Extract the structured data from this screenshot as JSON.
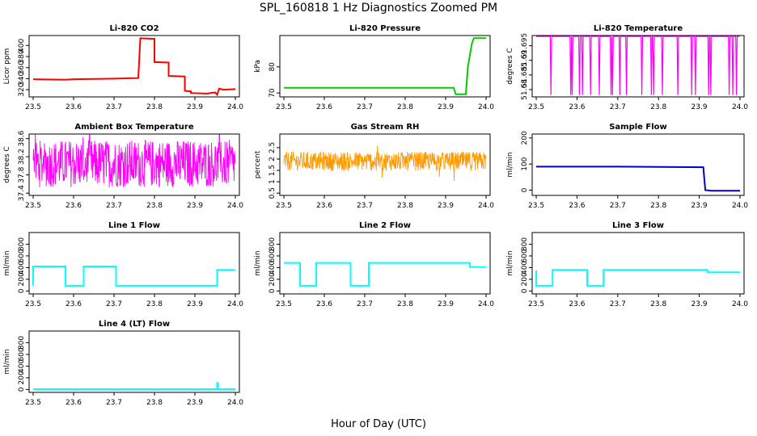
{
  "title": "SPL_160818  1 Hz Diagnostics Zoomed PM",
  "xlabel": "Hour of Day (UTC)",
  "chart_data": [
    {
      "id": "co2",
      "type": "line",
      "title": "Li-820 CO2",
      "ylabel": "Licor ppm",
      "color": "#ff0000",
      "xticks": [
        "23.5",
        "23.6",
        "23.7",
        "23.8",
        "23.9",
        "24.0"
      ],
      "yticks": [
        320,
        340,
        360,
        380,
        400
      ],
      "ylim": [
        307,
        418
      ],
      "xlim": [
        23.49,
        24.01
      ],
      "x": [
        23.5,
        23.58,
        23.6,
        23.7,
        23.76,
        23.765,
        23.8,
        23.8,
        23.835,
        23.835,
        23.875,
        23.875,
        23.89,
        23.89,
        23.93,
        23.95,
        23.955,
        23.96,
        23.97,
        24.0
      ],
      "y": [
        339,
        338,
        339,
        340,
        341,
        413,
        412,
        370,
        369,
        345,
        344,
        318,
        317,
        314,
        313,
        315,
        311,
        322,
        320,
        321
      ]
    },
    {
      "id": "pressure",
      "type": "line",
      "title": "Li-820 Pressure",
      "ylabel": "kPa",
      "color": "#00cc00",
      "xticks": [
        "23.5",
        "23.6",
        "23.7",
        "23.8",
        "23.9",
        "24.0"
      ],
      "yticks": [
        70,
        80
      ],
      "ylim": [
        68.5,
        92
      ],
      "xlim": [
        23.49,
        24.01
      ],
      "x": [
        23.5,
        23.7,
        23.9,
        23.92,
        23.925,
        23.95,
        23.955,
        23.965,
        23.97,
        24.0
      ],
      "y": [
        72,
        72,
        72,
        72,
        69.5,
        69.5,
        80,
        89,
        91,
        91
      ]
    },
    {
      "id": "licor_temp",
      "type": "line",
      "title": "Li-820 Temperature",
      "ylabel": "degrees C",
      "color": "#ff00ff",
      "xticks": [
        "23.5",
        "23.6",
        "23.7",
        "23.8",
        "23.9",
        "24.0"
      ],
      "yticks": [
        51.68,
        51.685,
        51.69,
        51.695
      ],
      "ylim": [
        51.6775,
        51.6985
      ],
      "xlim": [
        23.49,
        24.01
      ],
      "noise": "binary",
      "low": 51.6781,
      "high": 51.6982
    },
    {
      "id": "ambient_temp",
      "type": "line",
      "title": "Ambient Box Temperature",
      "ylabel": "degrees C",
      "color": "#ff00ff",
      "xticks": [
        "23.5",
        "23.6",
        "23.7",
        "23.8",
        "23.9",
        "24.0"
      ],
      "yticks": [
        37.4,
        37.8,
        38.2,
        38.6
      ],
      "ylim": [
        37.35,
        38.7
      ],
      "xlim": [
        23.49,
        24.01
      ],
      "noise": "band",
      "low": 37.55,
      "high": 38.55,
      "center": 38.05
    },
    {
      "id": "rh",
      "type": "scatter",
      "title": "Gas Stream RH",
      "ylabel": "percent",
      "color": "#ff9900",
      "xticks": [
        "23.5",
        "23.6",
        "23.7",
        "23.8",
        "23.9",
        "24.0"
      ],
      "yticks": [
        0.5,
        1.0,
        1.5,
        2.0,
        2.5
      ],
      "ylim": [
        0.4,
        3.1
      ],
      "xlim": [
        23.49,
        24.01
      ],
      "noise": "band",
      "low": 1.5,
      "high": 2.3,
      "center": 1.9
    },
    {
      "id": "sample_flow",
      "type": "line",
      "title": "Sample Flow",
      "ylabel": "ml/min",
      "color": "#0000cc",
      "xticks": [
        "23.5",
        "23.6",
        "23.7",
        "23.8",
        "23.9",
        "24.0"
      ],
      "yticks": [
        0,
        100,
        200
      ],
      "ylim": [
        -20,
        215
      ],
      "xlim": [
        23.49,
        24.01
      ],
      "x": [
        23.5,
        23.7,
        23.91,
        23.915,
        23.93,
        24.0
      ],
      "y": [
        90,
        90,
        88,
        0,
        -2,
        -2
      ]
    },
    {
      "id": "line1",
      "type": "line",
      "title": "Line 1 Flow",
      "ylabel": "ml/min",
      "color": "#00ffff",
      "xticks": [
        "23.5",
        "23.6",
        "23.7",
        "23.8",
        "23.9",
        "24.0"
      ],
      "yticks": [
        0,
        200,
        400,
        600,
        800
      ],
      "ylim": [
        -50,
        1000
      ],
      "xlim": [
        23.49,
        24.01
      ],
      "x": [
        23.5,
        23.5,
        23.58,
        23.58,
        23.625,
        23.625,
        23.705,
        23.705,
        23.955,
        23.955,
        24.0
      ],
      "y": [
        90,
        420,
        420,
        90,
        90,
        420,
        420,
        90,
        90,
        360,
        360
      ]
    },
    {
      "id": "line2",
      "type": "line",
      "title": "Line 2 Flow",
      "ylabel": "ml/min",
      "color": "#00ffff",
      "xticks": [
        "23.5",
        "23.6",
        "23.7",
        "23.8",
        "23.9",
        "24.0"
      ],
      "yticks": [
        0,
        200,
        400,
        600,
        800
      ],
      "ylim": [
        -50,
        1000
      ],
      "xlim": [
        23.49,
        24.01
      ],
      "x": [
        23.5,
        23.54,
        23.54,
        23.58,
        23.58,
        23.665,
        23.665,
        23.71,
        23.71,
        23.96,
        23.96,
        24.0
      ],
      "y": [
        480,
        480,
        90,
        90,
        480,
        480,
        90,
        90,
        480,
        480,
        410,
        410
      ]
    },
    {
      "id": "line3",
      "type": "line",
      "title": "Line 3 Flow",
      "ylabel": "ml/min",
      "color": "#00ffff",
      "xticks": [
        "23.5",
        "23.6",
        "23.7",
        "23.8",
        "23.9",
        "24.0"
      ],
      "yticks": [
        0,
        200,
        400,
        600,
        800
      ],
      "ylim": [
        -50,
        1000
      ],
      "xlim": [
        23.49,
        24.01
      ],
      "x": [
        23.5,
        23.5,
        23.54,
        23.54,
        23.625,
        23.625,
        23.665,
        23.665,
        23.92,
        23.92,
        24.0
      ],
      "y": [
        350,
        90,
        90,
        360,
        360,
        90,
        90,
        360,
        360,
        320,
        320
      ]
    },
    {
      "id": "line4",
      "type": "line",
      "title": "Line 4 (LT) Flow",
      "ylabel": "ml/min",
      "color": "#00ffff",
      "xticks": [
        "23.5",
        "23.6",
        "23.7",
        "23.8",
        "23.9",
        "24.0"
      ],
      "yticks": [
        0,
        200,
        400,
        600,
        800
      ],
      "ylim": [
        -50,
        1000
      ],
      "xlim": [
        23.49,
        24.01
      ],
      "x": [
        23.5,
        23.955,
        23.955,
        23.957,
        23.957,
        24.0
      ],
      "y": [
        5,
        5,
        110,
        110,
        5,
        5
      ]
    }
  ]
}
